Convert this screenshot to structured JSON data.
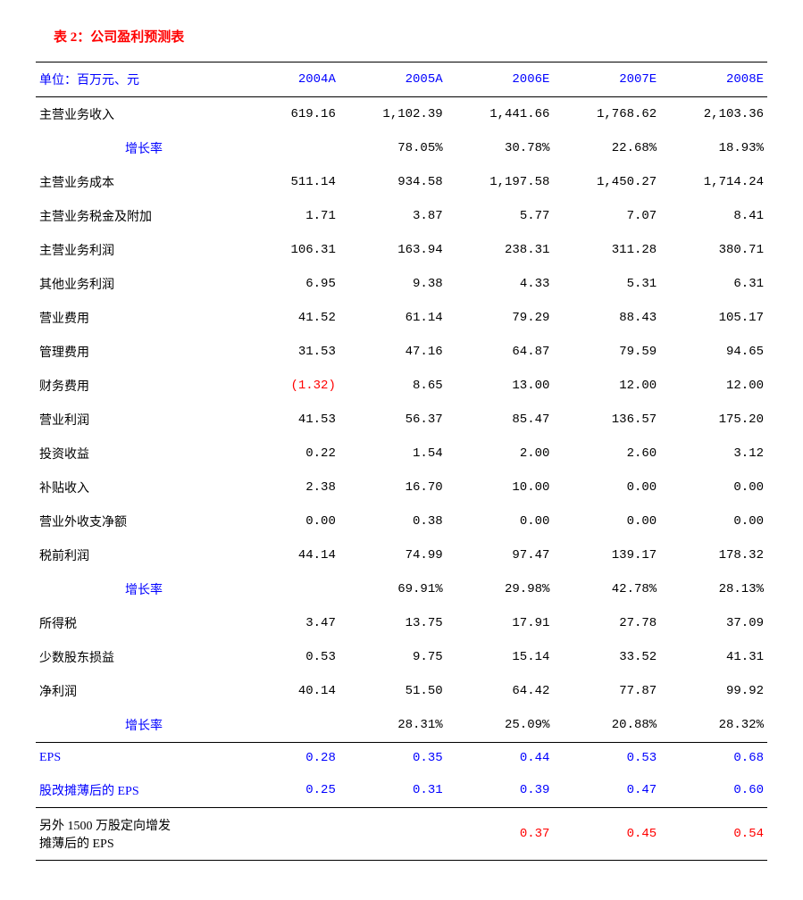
{
  "title": "表 2：公司盈利预测表",
  "unitLabel": "单位：百万元、元",
  "years": [
    "2004A",
    "2005A",
    "2006E",
    "2007E",
    "2008E"
  ],
  "rows": [
    {
      "label": "主营业务收入",
      "indent": false,
      "vals": [
        "619.16",
        "1,102.39",
        "1,441.66",
        "1,768.62",
        "2,103.36"
      ]
    },
    {
      "label": "增长率",
      "indent": true,
      "blueLabel": true,
      "vals": [
        "",
        "78.05%",
        "30.78%",
        "22.68%",
        "18.93%"
      ]
    },
    {
      "label": "主营业务成本",
      "indent": false,
      "vals": [
        "511.14",
        "934.58",
        "1,197.58",
        "1,450.27",
        "1,714.24"
      ]
    },
    {
      "label": "主营业务税金及附加",
      "indent": false,
      "vals": [
        "1.71",
        "3.87",
        "5.77",
        "7.07",
        "8.41"
      ]
    },
    {
      "label": "主营业务利润",
      "indent": false,
      "vals": [
        "106.31",
        "163.94",
        "238.31",
        "311.28",
        "380.71"
      ]
    },
    {
      "label": "其他业务利润",
      "indent": false,
      "vals": [
        "6.95",
        "9.38",
        "4.33",
        "5.31",
        "6.31"
      ]
    },
    {
      "label": "营业费用",
      "indent": false,
      "vals": [
        "41.52",
        "61.14",
        "79.29",
        "88.43",
        "105.17"
      ]
    },
    {
      "label": "管理费用",
      "indent": false,
      "vals": [
        "31.53",
        "47.16",
        "64.87",
        "79.59",
        "94.65"
      ]
    },
    {
      "label": "财务费用",
      "indent": false,
      "vals": [
        "(1.32)",
        "8.65",
        "13.00",
        "12.00",
        "12.00"
      ],
      "redIdx": [
        0
      ]
    },
    {
      "label": "营业利润",
      "indent": false,
      "vals": [
        "41.53",
        "56.37",
        "85.47",
        "136.57",
        "175.20"
      ]
    },
    {
      "label": "投资收益",
      "indent": false,
      "vals": [
        "0.22",
        "1.54",
        "2.00",
        "2.60",
        "3.12"
      ]
    },
    {
      "label": "补贴收入",
      "indent": false,
      "vals": [
        "2.38",
        "16.70",
        "10.00",
        "0.00",
        "0.00"
      ]
    },
    {
      "label": "营业外收支净额",
      "indent": false,
      "vals": [
        "0.00",
        "0.38",
        "0.00",
        "0.00",
        "0.00"
      ]
    },
    {
      "label": "税前利润",
      "indent": false,
      "vals": [
        "44.14",
        "74.99",
        "97.47",
        "139.17",
        "178.32"
      ]
    },
    {
      "label": "增长率",
      "indent": true,
      "blueLabel": true,
      "vals": [
        "",
        "69.91%",
        "29.98%",
        "42.78%",
        "28.13%"
      ]
    },
    {
      "label": "所得税",
      "indent": false,
      "vals": [
        "3.47",
        "13.75",
        "17.91",
        "27.78",
        "37.09"
      ]
    },
    {
      "label": "少数股东损益",
      "indent": false,
      "vals": [
        "0.53",
        "9.75",
        "15.14",
        "33.52",
        "41.31"
      ]
    },
    {
      "label": "净利润",
      "indent": false,
      "vals": [
        "40.14",
        "51.50",
        "64.42",
        "77.87",
        "99.92"
      ]
    },
    {
      "label": "增长率",
      "indent": true,
      "blueLabel": true,
      "vals": [
        "",
        "28.31%",
        "25.09%",
        "20.88%",
        "28.32%"
      ]
    }
  ],
  "epsRows": [
    {
      "label": "EPS",
      "blue": true,
      "vals": [
        "0.28",
        "0.35",
        "0.44",
        "0.53",
        "0.68"
      ]
    },
    {
      "label": "股改摊薄后的 EPS",
      "blue": true,
      "vals": [
        "0.25",
        "0.31",
        "0.39",
        "0.47",
        "0.60"
      ]
    }
  ],
  "lastBlock": {
    "label1": "另外 1500 万股定向增发",
    "label2": "摊薄后的 EPS",
    "vals": [
      "",
      "",
      "0.37",
      "0.45",
      "0.54"
    ]
  }
}
